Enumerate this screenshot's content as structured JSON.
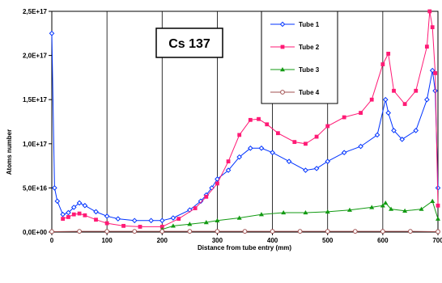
{
  "chart_data": {
    "type": "line",
    "annotation": "Cs 137",
    "xlabel": "Distance from tube entry (mm)",
    "ylabel": "Atoms number",
    "xlim": [
      0,
      700
    ],
    "ylim": [
      0,
      2.5e+17
    ],
    "xticks": [
      0,
      100,
      200,
      300,
      400,
      500,
      600,
      700
    ],
    "xtick_labels": [
      "0",
      "100",
      "200",
      "300",
      "400",
      "500",
      "600",
      "700"
    ],
    "yticks": [
      0,
      5e+16,
      1e+17,
      1.5e+17,
      2e+17,
      2.5e+17
    ],
    "ytick_labels": [
      "0,0E+00",
      "5,0E+16",
      "1,0E+17",
      "1,5E+17",
      "2,0E+17",
      "2,5E+17"
    ],
    "grid": "vertical",
    "legend_position": "top-right",
    "series": [
      {
        "name": "Tube 1",
        "color": "#0033ff",
        "marker": "diamond-open",
        "x": [
          0,
          5,
          10,
          20,
          30,
          40,
          50,
          60,
          80,
          100,
          120,
          150,
          180,
          200,
          220,
          250,
          270,
          280,
          290,
          300,
          320,
          340,
          360,
          380,
          400,
          430,
          460,
          480,
          500,
          530,
          560,
          590,
          605,
          610,
          620,
          635,
          660,
          680,
          690,
          695,
          700
        ],
        "y": [
          2.25e+17,
          5e+16,
          3.5e+16,
          2e+16,
          2.2e+16,
          2.8e+16,
          3.3e+16,
          3e+16,
          2.3e+16,
          1.8e+16,
          1.5e+16,
          1.3e+16,
          1.3e+16,
          1.3e+16,
          1.6e+16,
          2.5e+16,
          3.5e+16,
          4.2e+16,
          5e+16,
          6e+16,
          7e+16,
          8.5e+16,
          9.5e+16,
          9.5e+16,
          9e+16,
          8e+16,
          7e+16,
          7.2e+16,
          8e+16,
          9e+16,
          9.7e+16,
          1.1e+17,
          1.5e+17,
          1.35e+17,
          1.15e+17,
          1.05e+17,
          1.15e+17,
          1.5e+17,
          1.83e+17,
          1.6e+17,
          5e+16
        ]
      },
      {
        "name": "Tube 2",
        "color": "#ff1a75",
        "marker": "square",
        "x": [
          20,
          30,
          40,
          50,
          60,
          80,
          100,
          130,
          160,
          200,
          230,
          260,
          280,
          300,
          320,
          340,
          360,
          375,
          390,
          410,
          440,
          460,
          480,
          500,
          530,
          560,
          580,
          600,
          610,
          620,
          640,
          660,
          680,
          685,
          690,
          695,
          700
        ],
        "y": [
          1.5e+16,
          1.7e+16,
          2e+16,
          2.1e+16,
          1.9e+16,
          1.4e+16,
          1e+16,
          7000000000000000.0,
          6000000000000000.0,
          6000000000000000.0,
          1.5e+16,
          2.7e+16,
          4e+16,
          5.5e+16,
          8e+16,
          1.1e+17,
          1.27e+17,
          1.28e+17,
          1.22e+17,
          1.12e+17,
          1.02e+17,
          1e+17,
          1.08e+17,
          1.2e+17,
          1.3e+17,
          1.35e+17,
          1.5e+17,
          1.9e+17,
          2.02e+17,
          1.6e+17,
          1.45e+17,
          1.6e+17,
          2.1e+17,
          2.5e+17,
          2.32e+17,
          1.8e+17,
          3e+16
        ]
      },
      {
        "name": "Tube 3",
        "color": "#129a12",
        "marker": "triangle",
        "x": [
          200,
          220,
          250,
          280,
          300,
          340,
          380,
          420,
          460,
          500,
          540,
          580,
          600,
          605,
          615,
          640,
          670,
          690,
          700
        ],
        "y": [
          3000000000000000.0,
          7000000000000000.0,
          9000000000000000.0,
          1.1e+16,
          1.3e+16,
          1.6e+16,
          2e+16,
          2.2e+16,
          2.2e+16,
          2.3e+16,
          2.5e+16,
          2.8e+16,
          3e+16,
          3.3e+16,
          2.6e+16,
          2.4e+16,
          2.6e+16,
          3.5e+16,
          1.5e+16
        ]
      },
      {
        "name": "Tube 4",
        "color": "#a05050",
        "marker": "circle-open",
        "x": [
          0,
          50,
          100,
          150,
          200,
          250,
          300,
          350,
          400,
          450,
          500,
          550,
          600,
          650,
          700
        ],
        "y": [
          500000000000000.0,
          800000000000000.0,
          800000000000000.0,
          800000000000000.0,
          800000000000000.0,
          800000000000000.0,
          800000000000000.0,
          800000000000000.0,
          800000000000000.0,
          800000000000000.0,
          800000000000000.0,
          800000000000000.0,
          800000000000000.0,
          800000000000000.0,
          500000000000000.0
        ]
      }
    ]
  }
}
